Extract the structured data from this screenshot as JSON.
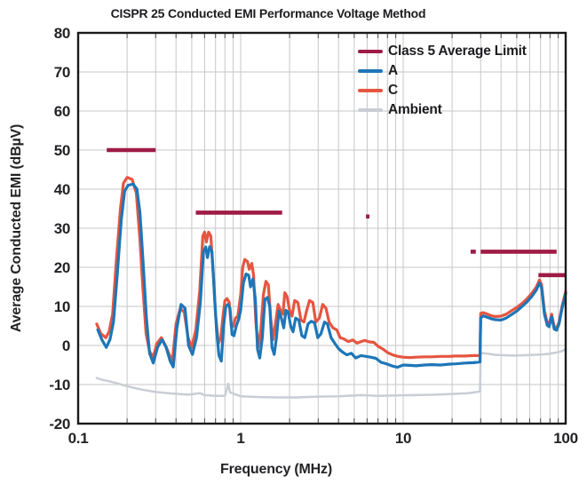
{
  "chart_data": {
    "type": "line",
    "title": "CISPR 25 Conducted EMI Performance Voltage Method",
    "xlabel": "Frequency (MHz)",
    "ylabel": "Average Conducted EMI (dBµV)",
    "x_scale": "log",
    "xlim": [
      0.1,
      100
    ],
    "ylim": [
      -20,
      80
    ],
    "grid": true,
    "x_tick_labels": [
      "0.1",
      "1",
      "10",
      "100"
    ],
    "x_tick_values": [
      0.1,
      1,
      10,
      100
    ],
    "y_tick_labels": [
      "80",
      "70",
      "60",
      "50",
      "40",
      "30",
      "20",
      "10",
      "0",
      "-10",
      "-20"
    ],
    "y_tick_values": [
      80,
      70,
      60,
      50,
      40,
      30,
      20,
      10,
      0,
      -10,
      -20
    ],
    "legend_position": "upper-right-inside",
    "legend": [
      {
        "label": "Class 5 Average Limit",
        "color": "#9e1b45"
      },
      {
        "label": "A",
        "color": "#1d76b8"
      },
      {
        "label": "C",
        "color": "#e65540"
      },
      {
        "label": "Ambient",
        "color": "#c9cdd5"
      }
    ],
    "limit_segments": [
      {
        "from": 0.15,
        "to": 0.3,
        "level": 50
      },
      {
        "from": 0.53,
        "to": 1.8,
        "level": 34
      },
      {
        "from": 5.9,
        "to": 6.2,
        "level": 33
      },
      {
        "from": 26,
        "to": 28,
        "level": 24
      },
      {
        "from": 30,
        "to": 88,
        "level": 24
      },
      {
        "from": 68,
        "to": 100,
        "level": 18
      }
    ],
    "series": [
      {
        "name": "A",
        "color": "#1d76b8",
        "width": 3.2,
        "points": [
          [
            0.132,
            4
          ],
          [
            0.14,
            1.5
          ],
          [
            0.149,
            -0.5
          ],
          [
            0.157,
            1.5
          ],
          [
            0.165,
            6
          ],
          [
            0.174,
            18
          ],
          [
            0.184,
            32
          ],
          [
            0.193,
            39.5
          ],
          [
            0.203,
            41
          ],
          [
            0.218,
            41.3
          ],
          [
            0.23,
            40
          ],
          [
            0.24,
            34
          ],
          [
            0.252,
            20
          ],
          [
            0.263,
            7
          ],
          [
            0.275,
            -2
          ],
          [
            0.29,
            -4.5
          ],
          [
            0.308,
            -0.5
          ],
          [
            0.328,
            1.5
          ],
          [
            0.348,
            -0.5
          ],
          [
            0.368,
            -4
          ],
          [
            0.385,
            -5.5
          ],
          [
            0.405,
            4.5
          ],
          [
            0.43,
            10.5
          ],
          [
            0.455,
            9.5
          ],
          [
            0.478,
            0
          ],
          [
            0.505,
            -2.3
          ],
          [
            0.535,
            2
          ],
          [
            0.565,
            11
          ],
          [
            0.59,
            24
          ],
          [
            0.61,
            25.2
          ],
          [
            0.625,
            22.5
          ],
          [
            0.645,
            25.3
          ],
          [
            0.665,
            24
          ],
          [
            0.69,
            13
          ],
          [
            0.71,
            4
          ],
          [
            0.735,
            -2.5
          ],
          [
            0.76,
            -4
          ],
          [
            0.785,
            5
          ],
          [
            0.81,
            10
          ],
          [
            0.835,
            10.5
          ],
          [
            0.86,
            9.5
          ],
          [
            0.885,
            2.8
          ],
          [
            0.91,
            2.5
          ],
          [
            0.94,
            5
          ],
          [
            0.97,
            6.6
          ],
          [
            1.0,
            9
          ],
          [
            1.04,
            16
          ],
          [
            1.08,
            18.3
          ],
          [
            1.12,
            18
          ],
          [
            1.15,
            15
          ],
          [
            1.19,
            17
          ],
          [
            1.23,
            12
          ],
          [
            1.27,
            -1
          ],
          [
            1.31,
            -3.2
          ],
          [
            1.36,
            2
          ],
          [
            1.41,
            11.8
          ],
          [
            1.46,
            12.3
          ],
          [
            1.51,
            10
          ],
          [
            1.56,
            -0.5
          ],
          [
            1.61,
            -2.3
          ],
          [
            1.66,
            2
          ],
          [
            1.72,
            8.8
          ],
          [
            1.78,
            7
          ],
          [
            1.84,
            4.5
          ],
          [
            1.9,
            9
          ],
          [
            1.96,
            8.5
          ],
          [
            2.03,
            5
          ],
          [
            2.1,
            3.5
          ],
          [
            2.18,
            7
          ],
          [
            2.28,
            6.5
          ],
          [
            2.38,
            2.5
          ],
          [
            2.48,
            2
          ],
          [
            2.6,
            5.5
          ],
          [
            2.72,
            6.2
          ],
          [
            2.85,
            5.8
          ],
          [
            2.98,
            2
          ],
          [
            3.12,
            3
          ],
          [
            3.28,
            6
          ],
          [
            3.42,
            5.5
          ],
          [
            3.6,
            2
          ],
          [
            3.8,
            0.5
          ],
          [
            4.0,
            -0.8
          ],
          [
            4.2,
            -1.6
          ],
          [
            4.5,
            -2.4
          ],
          [
            4.8,
            -2.0
          ],
          [
            5.1,
            -3.2
          ],
          [
            5.5,
            -2.6
          ],
          [
            5.9,
            -2.8
          ],
          [
            6.3,
            -3.0
          ],
          [
            6.8,
            -3.3
          ],
          [
            7.3,
            -4.3
          ],
          [
            7.9,
            -4.7
          ],
          [
            8.5,
            -5.2
          ],
          [
            9.2,
            -5.6
          ],
          [
            10,
            -5.0
          ],
          [
            11,
            -5.1
          ],
          [
            12,
            -5.2
          ],
          [
            13.5,
            -5.0
          ],
          [
            15,
            -4.9
          ],
          [
            17,
            -5.0
          ],
          [
            19,
            -4.8
          ],
          [
            21,
            -4.7
          ],
          [
            24,
            -4.5
          ],
          [
            27,
            -4.4
          ],
          [
            29.7,
            -4.2
          ],
          [
            30,
            7.0
          ],
          [
            31,
            7.6
          ],
          [
            33,
            7.2
          ],
          [
            35,
            6.8
          ],
          [
            37,
            6.6
          ],
          [
            40,
            6.5
          ],
          [
            43,
            7.0
          ],
          [
            46,
            7.8
          ],
          [
            50,
            8.8
          ],
          [
            54,
            10.0
          ],
          [
            58,
            11.2
          ],
          [
            62,
            12.6
          ],
          [
            66,
            14.2
          ],
          [
            69,
            16.0
          ],
          [
            71,
            14.8
          ],
          [
            74,
            8.0
          ],
          [
            77,
            5.2
          ],
          [
            79,
            4.8
          ],
          [
            82,
            7.4
          ],
          [
            85,
            4.2
          ],
          [
            88,
            3.9
          ],
          [
            91,
            5.5
          ],
          [
            95,
            9.5
          ],
          [
            100,
            13.3
          ]
        ]
      },
      {
        "name": "C",
        "color": "#e65540",
        "width": 3.2,
        "points": [
          [
            0.13,
            5.5
          ],
          [
            0.138,
            3
          ],
          [
            0.148,
            2
          ],
          [
            0.155,
            3.5
          ],
          [
            0.163,
            8
          ],
          [
            0.172,
            22
          ],
          [
            0.182,
            35
          ],
          [
            0.19,
            41.5
          ],
          [
            0.2,
            43
          ],
          [
            0.215,
            42.5
          ],
          [
            0.228,
            39
          ],
          [
            0.24,
            27
          ],
          [
            0.25,
            15
          ],
          [
            0.262,
            3
          ],
          [
            0.275,
            -1.5
          ],
          [
            0.29,
            -3
          ],
          [
            0.305,
            0.5
          ],
          [
            0.325,
            2
          ],
          [
            0.345,
            0
          ],
          [
            0.365,
            -2.5
          ],
          [
            0.38,
            -4
          ],
          [
            0.4,
            5.5
          ],
          [
            0.425,
            9.5
          ],
          [
            0.45,
            8.5
          ],
          [
            0.475,
            2
          ],
          [
            0.5,
            -0.5
          ],
          [
            0.53,
            4
          ],
          [
            0.56,
            14
          ],
          [
            0.585,
            28
          ],
          [
            0.6,
            29
          ],
          [
            0.615,
            26.5
          ],
          [
            0.635,
            29
          ],
          [
            0.655,
            28
          ],
          [
            0.68,
            18
          ],
          [
            0.7,
            8
          ],
          [
            0.73,
            0.5
          ],
          [
            0.755,
            2
          ],
          [
            0.78,
            8
          ],
          [
            0.8,
            11.5
          ],
          [
            0.825,
            12
          ],
          [
            0.85,
            11
          ],
          [
            0.875,
            5
          ],
          [
            0.9,
            4.9
          ],
          [
            0.93,
            7
          ],
          [
            0.96,
            7.5
          ],
          [
            1.0,
            13
          ],
          [
            1.03,
            20
          ],
          [
            1.06,
            22
          ],
          [
            1.1,
            21.5
          ],
          [
            1.13,
            19.5
          ],
          [
            1.17,
            21
          ],
          [
            1.2,
            18
          ],
          [
            1.24,
            6
          ],
          [
            1.28,
            -0.5
          ],
          [
            1.33,
            4
          ],
          [
            1.38,
            13
          ],
          [
            1.43,
            16.4
          ],
          [
            1.48,
            15.5
          ],
          [
            1.53,
            7
          ],
          [
            1.58,
            1.5
          ],
          [
            1.63,
            5
          ],
          [
            1.7,
            10.5
          ],
          [
            1.76,
            9
          ],
          [
            1.82,
            8
          ],
          [
            1.87,
            13.5
          ],
          [
            1.93,
            12.5
          ],
          [
            2.0,
            9
          ],
          [
            2.07,
            7.5
          ],
          [
            2.15,
            11.5
          ],
          [
            2.25,
            11
          ],
          [
            2.35,
            6.5
          ],
          [
            2.45,
            6
          ],
          [
            2.55,
            9
          ],
          [
            2.65,
            11.5
          ],
          [
            2.78,
            11
          ],
          [
            2.9,
            6
          ],
          [
            3.05,
            7
          ],
          [
            3.2,
            10.5
          ],
          [
            3.35,
            9.5
          ],
          [
            3.5,
            6
          ],
          [
            3.7,
            4.5
          ],
          [
            3.9,
            4
          ],
          [
            4.1,
            2
          ],
          [
            4.3,
            1.7
          ],
          [
            4.6,
            1
          ],
          [
            4.9,
            1.4
          ],
          [
            5.2,
            0.6
          ],
          [
            5.5,
            1
          ],
          [
            5.8,
            1.3
          ],
          [
            6.2,
            0.9
          ],
          [
            6.6,
            0.8
          ],
          [
            7.0,
            -0.2
          ],
          [
            7.5,
            -0.9
          ],
          [
            8.0,
            -1.8
          ],
          [
            8.6,
            -2.4
          ],
          [
            9.3,
            -2.8
          ],
          [
            10,
            -3.0
          ],
          [
            11,
            -3.1
          ],
          [
            12,
            -3.0
          ],
          [
            13.5,
            -2.9
          ],
          [
            15,
            -2.9
          ],
          [
            17,
            -2.8
          ],
          [
            19,
            -2.8
          ],
          [
            21,
            -2.7
          ],
          [
            24,
            -2.7
          ],
          [
            27,
            -2.6
          ],
          [
            29.7,
            -2.6
          ],
          [
            30,
            8.2
          ],
          [
            31,
            8.4
          ],
          [
            33,
            8.0
          ],
          [
            35,
            7.6
          ],
          [
            37,
            7.4
          ],
          [
            40,
            7.5
          ],
          [
            43,
            8.0
          ],
          [
            46,
            8.8
          ],
          [
            50,
            9.7
          ],
          [
            54,
            10.8
          ],
          [
            58,
            12.0
          ],
          [
            62,
            13.4
          ],
          [
            66,
            15.0
          ],
          [
            69,
            16.8
          ],
          [
            71,
            15.6
          ],
          [
            74,
            8.8
          ],
          [
            77,
            5.8
          ],
          [
            79,
            5.4
          ],
          [
            82,
            8.0
          ],
          [
            85,
            4.8
          ],
          [
            88,
            4.4
          ],
          [
            91,
            6.0
          ],
          [
            95,
            10.0
          ],
          [
            100,
            13.8
          ]
        ]
      },
      {
        "name": "Ambient",
        "color": "#c9cdd5",
        "width": 2.5,
        "points": [
          [
            0.13,
            -8.3
          ],
          [
            0.14,
            -8.8
          ],
          [
            0.15,
            -9.0
          ],
          [
            0.17,
            -9.6
          ],
          [
            0.2,
            -10.4
          ],
          [
            0.24,
            -11.2
          ],
          [
            0.3,
            -11.9
          ],
          [
            0.38,
            -12.3
          ],
          [
            0.48,
            -12.6
          ],
          [
            0.56,
            -12.2
          ],
          [
            0.6,
            -12.7
          ],
          [
            0.7,
            -12.9
          ],
          [
            0.8,
            -12.9
          ],
          [
            0.84,
            -9.8
          ],
          [
            0.86,
            -12.0
          ],
          [
            1.0,
            -13.0
          ],
          [
            1.3,
            -13.2
          ],
          [
            1.7,
            -13.3
          ],
          [
            2.2,
            -13.3
          ],
          [
            3.0,
            -13.1
          ],
          [
            4.0,
            -13.0
          ],
          [
            5.5,
            -12.7
          ],
          [
            7.0,
            -12.9
          ],
          [
            9.0,
            -12.8
          ],
          [
            12,
            -12.7
          ],
          [
            16,
            -12.6
          ],
          [
            20,
            -12.4
          ],
          [
            25,
            -12.2
          ],
          [
            29.7,
            -11.8
          ],
          [
            30,
            -1.9
          ],
          [
            33,
            -2.1
          ],
          [
            37,
            -2.4
          ],
          [
            42,
            -2.5
          ],
          [
            48,
            -2.6
          ],
          [
            55,
            -2.5
          ],
          [
            63,
            -2.4
          ],
          [
            72,
            -2.3
          ],
          [
            80,
            -2.1
          ],
          [
            88,
            -1.8
          ],
          [
            94,
            -1.5
          ],
          [
            100,
            -0.9
          ]
        ]
      }
    ],
    "style_colors": {
      "grid": "#c7c7c7",
      "frame": "#1a1a1a",
      "tick": "#4a4a4a",
      "text": "#232327",
      "limit": "#9e1b45"
    }
  }
}
